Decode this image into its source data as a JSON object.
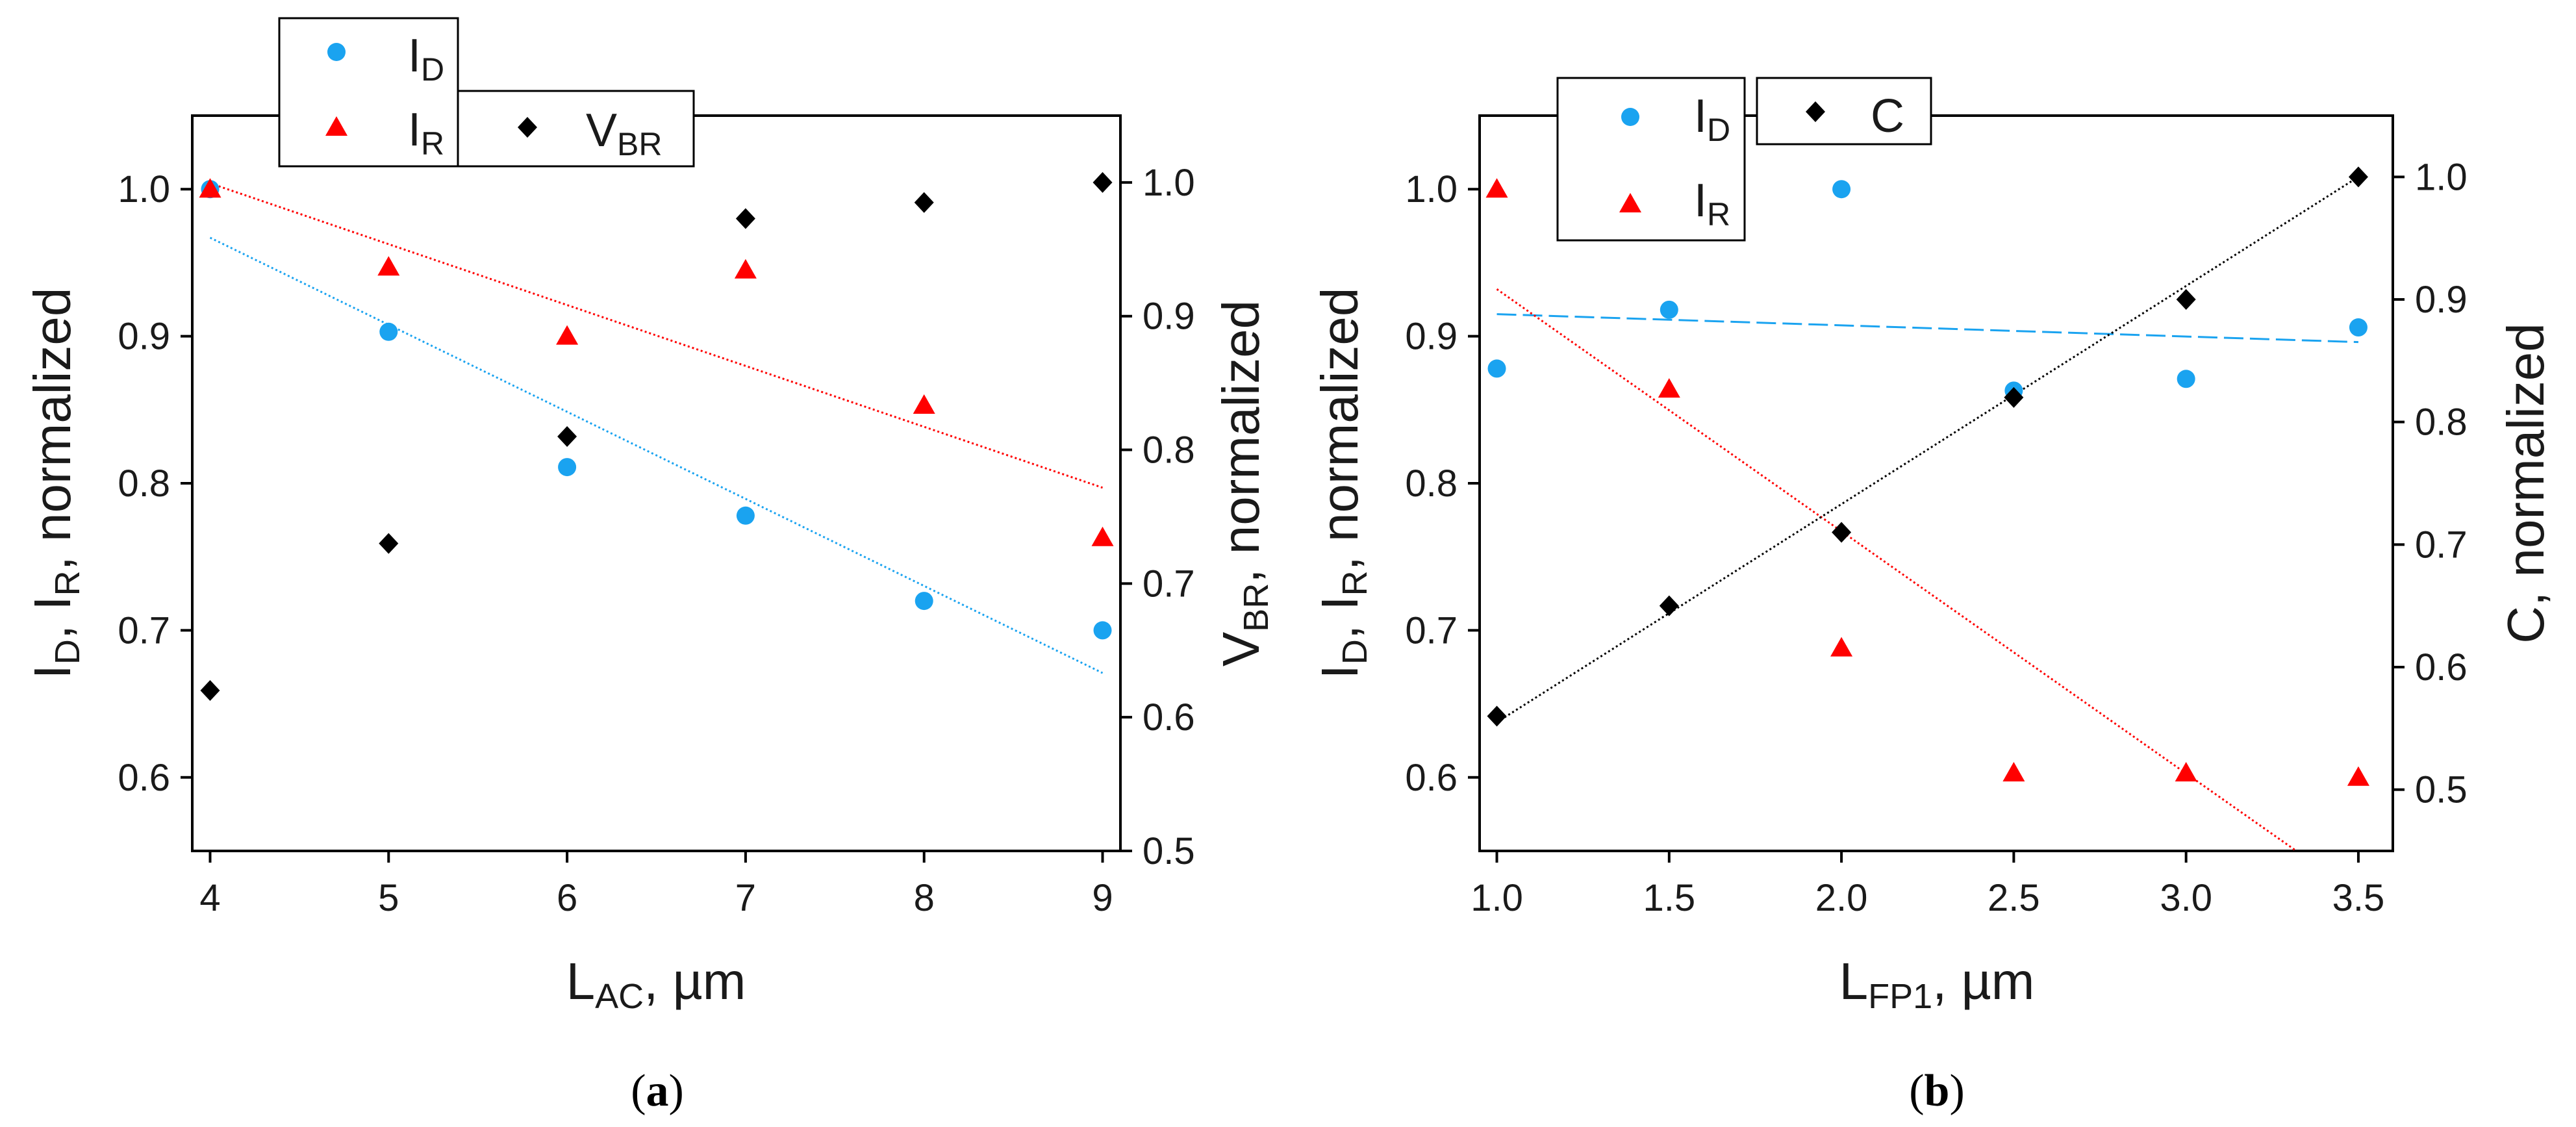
{
  "chart_data": [
    {
      "type": "scatter",
      "caption": {
        "open": "(",
        "letter": "a",
        "close": ")"
      },
      "x": [
        4,
        5,
        6,
        7,
        8,
        9
      ],
      "xlim": [
        3.9,
        9.1
      ],
      "xticks": [
        "4",
        "5",
        "6",
        "7",
        "8",
        "9"
      ],
      "xlabel": {
        "main": "L",
        "sub": "AC",
        "rest": ", µm"
      },
      "ylim_left": [
        0.55,
        1.05
      ],
      "yticks_left": [
        "0.6",
        "0.7",
        "0.8",
        "0.9",
        "1.0"
      ],
      "ylabel_left": {
        "p1": "I",
        "s1": "D",
        "p2": ", I",
        "s2": "R",
        "p3": ", normalized"
      },
      "ylim_right": [
        0.5,
        1.05
      ],
      "yticks_right": [
        "0.5",
        "0.6",
        "0.7",
        "0.8",
        "0.9",
        "1.0"
      ],
      "ylabel_right": {
        "p1": "V",
        "s1": "BR",
        "p2": ", normalized"
      },
      "series": [
        {
          "name": "I",
          "sub": "D",
          "marker": "circle",
          "color": "#1aa3f0",
          "axis": "left",
          "values": [
            1.0,
            0.903,
            0.811,
            0.778,
            0.72,
            0.7
          ],
          "fit": [
            [
              4,
              0.967
            ],
            [
              9,
              0.671
            ]
          ],
          "fit_style": "dotted"
        },
        {
          "name": "I",
          "sub": "R",
          "marker": "triangle",
          "color": "#ff0000",
          "axis": "left",
          "values": [
            1.0,
            0.947,
            0.9,
            0.945,
            0.853,
            0.763
          ],
          "fit": [
            [
              4,
              1.004
            ],
            [
              9,
              0.797
            ]
          ],
          "fit_style": "dotted"
        },
        {
          "name": "V",
          "sub": "BR",
          "marker": "diamond",
          "color": "#000000",
          "axis": "right",
          "values": [
            0.62,
            0.73,
            0.81,
            0.973,
            0.985,
            1.0
          ]
        }
      ]
    },
    {
      "type": "scatter",
      "caption": {
        "open": "(",
        "letter": "b",
        "close": ")"
      },
      "x": [
        1.0,
        1.5,
        2.0,
        2.5,
        3.0,
        3.5
      ],
      "xlim": [
        0.95,
        3.6
      ],
      "xticks": [
        "1.0",
        "1.5",
        "2.0",
        "2.5",
        "3.0",
        "3.5"
      ],
      "xlabel": {
        "main": "L",
        "sub": "FP1",
        "rest": ", µm"
      },
      "ylim_left": [
        0.55,
        1.05
      ],
      "yticks_left": [
        "0.6",
        "0.7",
        "0.8",
        "0.9",
        "1.0"
      ],
      "ylabel_left": {
        "p1": "I",
        "s1": "D",
        "p2": ", I",
        "s2": "R",
        "p3": ", normalized"
      },
      "ylim_right": [
        0.45,
        1.05
      ],
      "yticks_right": [
        "0.5",
        "0.6",
        "0.7",
        "0.8",
        "0.9",
        "1.0"
      ],
      "ylabel_right": {
        "p1": "C, normalized"
      },
      "series": [
        {
          "name": "I",
          "sub": "D",
          "marker": "circle",
          "color": "#1aa3f0",
          "axis": "left",
          "values": [
            0.878,
            0.918,
            1.0,
            0.863,
            0.871,
            0.906
          ],
          "fit": [
            [
              1.0,
              0.915
            ],
            [
              3.5,
              0.896
            ]
          ],
          "fit_style": "dashed"
        },
        {
          "name": "I",
          "sub": "R",
          "marker": "triangle",
          "color": "#ff0000",
          "axis": "left",
          "values": [
            1.0,
            0.864,
            0.688,
            0.603,
            0.603,
            0.6
          ],
          "fit": [
            [
              1.0,
              0.932
            ],
            [
              3.32,
              0.55
            ]
          ],
          "fit_style": "dotted"
        },
        {
          "name": "C",
          "sub": "",
          "marker": "diamond",
          "color": "#000000",
          "axis": "right",
          "values": [
            0.56,
            0.65,
            0.71,
            0.82,
            0.9,
            1.0
          ],
          "fit": [
            [
              1.0,
              0.555
            ],
            [
              3.5,
              1.0
            ]
          ],
          "fit_style": "dotted"
        }
      ]
    }
  ]
}
